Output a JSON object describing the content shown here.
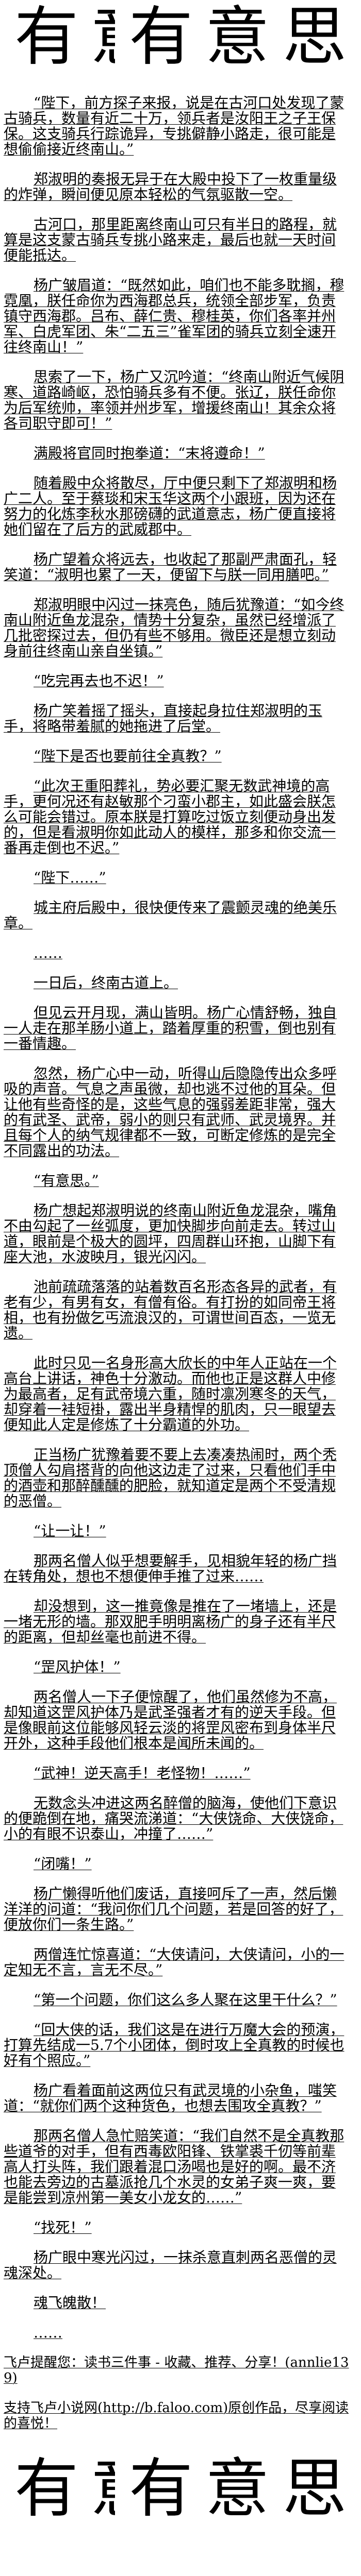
{
  "logo": {
    "chars": [
      "有",
      "意",
      "有",
      "意",
      "思"
    ]
  },
  "paragraphs": [
    "“陛下，前方探子来报，说是在古河口处发现了蒙古骑兵，数量有近二十万，领兵者是汝阳王之子王保保。这支骑兵行踪诡异，专挑僻静小路走，很可能是想偷偷接近终南山。”",
    "郑淑明的奏报无异于在大殿中投下了一枚重量级的炸弹，瞬间便见原本轻松的气氛驱散一空。",
    "古河口，那里距离终南山可只有半日的路程，就算是这支蒙古骑兵专挑小路来走，最后也就一天时间便能抵达。",
    "杨广皱眉道：“既然如此，咱们也不能多耽搁，穆霓凰，朕任命你为西海郡总兵，统领全部步军，负责镇守西海郡。吕布、薛仁贵、穆桂英，你们各率并州军、白虎军团、朱“二五三”雀军团的骑兵立刻全速开往终南山！”",
    "思索了一下，杨广又沉吟道：“终南山附近气候阴寒、道路崎岖，恐怕骑兵多有不便。张辽，朕任命你为后军统帅，率领并州步军，增援终南山！其余众将各司职守即可！”",
    "满殿将官同时抱拳道：“末将遵命！”",
    "随着殿中众将散尽，厅中便只剩下了郑淑明和杨广二人。至于蔡琰和宋玉华这两个小跟班，因为还在努力的化炼李秋水那磅礴的武道意志，杨广便直接将她们留在了后方的武威郡中。",
    "杨广望着众将远去，也收起了那副严肃面孔，轻笑道：“淑明也累了一天，便留下与朕一同用膳吧。”",
    "郑淑明眼中闪过一抹亮色，随后犹豫道：“如今终南山附近鱼龙混杂，情势十分复杂，虽然已经增派了几批密探过去，但仍有些不够用。微臣还是想立刻动身前往终南山亲自坐镇。”",
    "“吃完再去也不迟！”",
    "杨广笑着摇了摇头，直接起身拉住郑淑明的玉手，将略带羞腻的她拖进了后堂。",
    "“陛下是否也要前往全真教？”",
    "“此次王重阳葬礼，势必要汇聚无数武神境的高手，更何况还有赵敏那个刁蛮小郡主，如此盛会朕怎么可能会错过。原本朕是打算吃过饭立刻便动身出发的，但是看淑明你如此动人的模样，那多和你交流一番再走倒也不迟。”",
    "“陛下……”",
    "城主府后殿中，很快便传来了震颤灵魂的绝美乐章。",
    "……",
    "一日后，终南古道上。",
    "但见云开月现，满山皆明。杨广心情舒畅，独自一人走在那羊肠小道上，踏着厚重的积雪，倒也别有一番情趣。",
    "忽然，杨广心中一动，听得山后隐隐传出众多呼吸的声音。气息之声虽微，却也逃不过他的耳朵。但让他有些奇怪的是，这些气息的强弱差距非常，强大的有武圣、武帝，弱小的则只有武师、武灵境界。并且每个人的纳气规律都不一致，可断定修炼的是完全不同露出的功法。",
    "“有意思。”",
    "杨广想起郑淑明说的终南山附近鱼龙混杂，嘴角不由勾起了一丝弧度，更加快脚步向前走去。转过山道，眼前是个极大的圆坪，四周群山环抱，山脚下有座大池，水波映月，银光闪闪。",
    "池前疏疏落落的站着数百名形态各异的武者，有老有少，有男有女，有僧有俗。有打扮的如同帝王将相，也有扮做乞丐流浪汉的，可谓世间百态，一览无遗。",
    "此时只见一名身形高大欣长的中年人正站在一个高台上讲话，神色十分激动。而他也正是这群人中修为最高者，足有武帝境六重，随时凛冽寒冬的天气，却穿着一袿短褂，露出半身精悍的肌肉，只一眼望去便知此人定是修炼了十分霸道的外功。",
    "正当杨广犹豫着要不要上去凑凑热闹时，两个秃顶僧人勾肩搭背的向他这边走了过来，只看他们手中的酒壶和那醉醺醺的肥脸，就知道定是两个不受清规的恶僧。",
    "“让一让！”",
    "那两名僧人似乎想要解手，见相貌年轻的杨广挡在转角处，想也不想便伸手推了过来……",
    "却没想到，这一推竟像是推在了一堵墙上，还是一堵无形的墙。那双肥手明明离杨广的身子还有半尺的距离，但却丝毫也前进不得。",
    "“罡风护体！”",
    "两名僧人一下子便惊醒了，他们虽然修为不高，却知道这罡风护体乃是武圣强者才有的逆天手段。但是像眼前这位能够风轻云淡的将罡风密布到身体半尺开外，这种手段他们根本是闻所未闻的。",
    "“武神！逆天高手！老怪物！……”",
    "无数念头冲进这两名醉僧的脑海，使他们下意识的便跪倒在地，痛哭流涕道：“大侠饶命、大侠饶命，小的有眼不识泰山，冲撞了……”",
    "“闭嘴！”",
    "杨广懒得听他们废话，直接呵斥了一声，然后懒洋洋的问道：“我问你们几个问题，若是回答的好了，便放你们一条生路。”",
    "两僧连忙惊喜道：“大侠请问，大侠请问，小的一定知无不言，言无不尽。”",
    "“第一个问题，你们这么多人聚在这里干什么？”",
    "“回大侠的话，我们这是在进行万魔大会的预演，打算先结成一5.7个小团体，倒时攻上全真教的时候也好有个照应。”",
    "杨广看着面前这两位只有武灵境的小杂鱼，嗤笑道：“就你们两个这种货色，也想去围攻全真教？”",
    "那两名僧人急忙赔笑道：“我们自然不是全真教那些道爷的对手，但有西毒欧阳锋、铁掌裘千仞等前辈高人打头阵，我们跟着混口汤喝也是好的啊。最不济也能去旁边的古墓派抢几个水灵的女弟子爽一爽，要是能尝到凉州第一美女小龙女的……”",
    "“找死！”",
    "杨广眼中寒光闪过，一抹杀意直刺两名恶僧的灵魂深处。",
    "魂飞魄散！",
    "……"
  ],
  "footer": {
    "reminder": "飞卢提醒您：读书三件事 - 收藏、推荐、分享！(annlie139)",
    "support": "支持飞卢小说网(http://b.faloo.com)原创作品，尽享阅读的喜悦！"
  }
}
